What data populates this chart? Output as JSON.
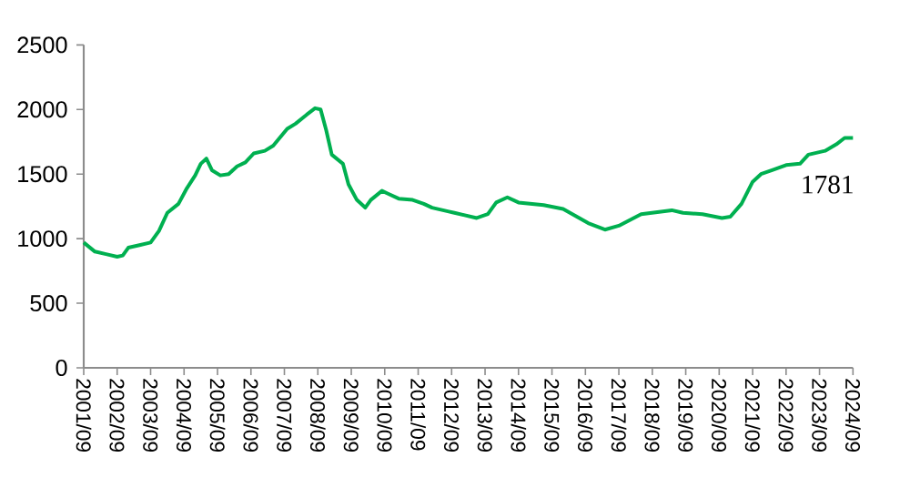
{
  "chart_data": {
    "type": "line",
    "x": [
      "2001-09",
      "2002-01",
      "2002-05",
      "2002-09",
      "2002-11",
      "2003-01",
      "2003-05",
      "2003-09",
      "2003-12",
      "2004-03",
      "2004-07",
      "2004-10",
      "2005-01",
      "2005-03",
      "2005-05",
      "2005-07",
      "2005-10",
      "2006-01",
      "2006-04",
      "2006-07",
      "2006-10",
      "2007-02",
      "2007-05",
      "2007-10",
      "2008-01",
      "2008-05",
      "2008-08",
      "2008-10",
      "2008-12",
      "2009-02",
      "2009-06",
      "2009-08",
      "2009-11",
      "2010-02",
      "2010-04",
      "2010-08",
      "2010-10",
      "2011-02",
      "2011-07",
      "2011-11",
      "2012-02",
      "2012-08",
      "2012-10",
      "2013-06",
      "2013-10",
      "2014-01",
      "2014-05",
      "2014-09",
      "2015-06",
      "2016-01",
      "2016-10",
      "2017-04",
      "2017-09",
      "2018-05",
      "2019-04",
      "2019-08",
      "2020-03",
      "2020-10",
      "2021-01",
      "2021-05",
      "2021-09",
      "2021-12",
      "2022-04",
      "2022-09",
      "2023-02",
      "2023-05",
      "2023-11",
      "2024-03",
      "2024-06",
      "2024-09"
    ],
    "series": [
      {
        "color": "#00b050",
        "values": [
          970,
          900,
          880,
          860,
          870,
          930,
          950,
          970,
          1060,
          1200,
          1270,
          1390,
          1490,
          1580,
          1620,
          1530,
          1490,
          1500,
          1560,
          1590,
          1660,
          1680,
          1720,
          1850,
          1890,
          1960,
          2010,
          2000,
          1840,
          1650,
          1580,
          1420,
          1300,
          1240,
          1300,
          1370,
          1350,
          1310,
          1300,
          1270,
          1240,
          1210,
          1200,
          1160,
          1190,
          1280,
          1320,
          1280,
          1260,
          1230,
          1120,
          1070,
          1100,
          1190,
          1220,
          1200,
          1190,
          1160,
          1170,
          1270,
          1440,
          1500,
          1530,
          1570,
          1580,
          1650,
          1680,
          1730,
          1780,
          1780
        ]
      }
    ],
    "ylim": [
      0,
      2500
    ],
    "yticks": [
      0,
      500,
      1000,
      1500,
      2000,
      2500
    ],
    "xlim": [
      "2001-09",
      "2024-09"
    ],
    "xticks": [
      {
        "value": "2001-09",
        "label": "2001/09"
      },
      {
        "value": "2002-09",
        "label": "2002/09"
      },
      {
        "value": "2003-09",
        "label": "2003/09"
      },
      {
        "value": "2004-09",
        "label": "2004/09"
      },
      {
        "value": "2005-09",
        "label": "2005/09"
      },
      {
        "value": "2006-09",
        "label": "2006/09"
      },
      {
        "value": "2007-09",
        "label": "2007/09"
      },
      {
        "value": "2008-09",
        "label": "2008/09"
      },
      {
        "value": "2009-09",
        "label": "2009/09"
      },
      {
        "value": "2010-09",
        "label": "2010/09"
      },
      {
        "value": "2011-09",
        "label": "2011/09"
      },
      {
        "value": "2012-09",
        "label": "2012/09"
      },
      {
        "value": "2013-09",
        "label": "2013/09"
      },
      {
        "value": "2014-09",
        "label": "2014/09"
      },
      {
        "value": "2015-09",
        "label": "2015/09"
      },
      {
        "value": "2016-09",
        "label": "2016/09"
      },
      {
        "value": "2017-09",
        "label": "2017/09"
      },
      {
        "value": "2018-09",
        "label": "2018/09"
      },
      {
        "value": "2019-09",
        "label": "2019/09"
      },
      {
        "value": "2020-09",
        "label": "2020/09"
      },
      {
        "value": "2021-09",
        "label": "2021/09"
      },
      {
        "value": "2022-09",
        "label": "2022/09"
      },
      {
        "value": "2023-09",
        "label": "2023/09"
      },
      {
        "value": "2024-09",
        "label": "2024/09"
      }
    ],
    "annotations": [
      {
        "text": "1781",
        "x": "2024-09",
        "y": 1781
      }
    ],
    "grid": false,
    "marker": "none",
    "line_style": "solid"
  }
}
